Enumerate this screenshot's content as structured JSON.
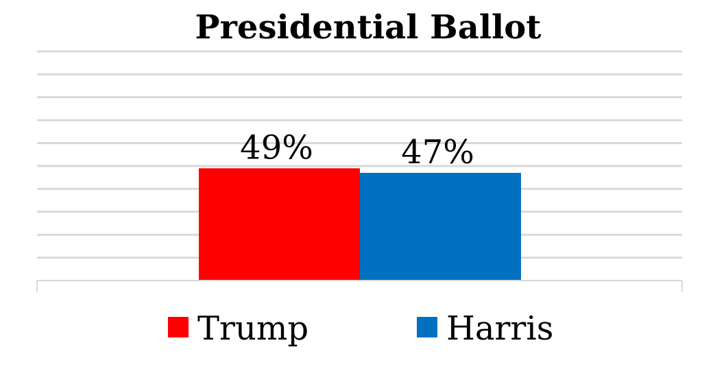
{
  "chart_data": {
    "type": "bar",
    "title": "Presidential Ballot",
    "categories": [
      ""
    ],
    "ylim": [
      0,
      100
    ],
    "grid": true,
    "legend_position": "bottom",
    "series": [
      {
        "name": "Trump",
        "values": [
          49
        ],
        "label": "49%",
        "color": "#ff0000"
      },
      {
        "name": "Harris",
        "values": [
          47
        ],
        "label": "47%",
        "color": "#0070c0"
      }
    ],
    "gridline_color": "#d9d9d9",
    "axis_color": "#d9d9d9"
  }
}
